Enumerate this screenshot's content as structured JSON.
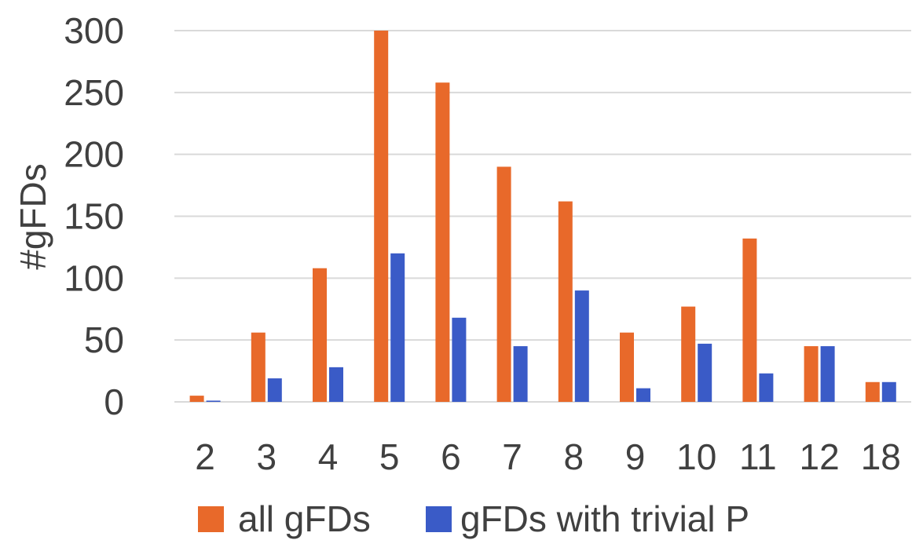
{
  "chart_data": {
    "type": "bar",
    "title": "",
    "xlabel": "",
    "ylabel": "#gFDs",
    "categories": [
      "2",
      "3",
      "4",
      "5",
      "6",
      "7",
      "8",
      "9",
      "10",
      "11",
      "12",
      "18"
    ],
    "series": [
      {
        "name": "all gFDs",
        "color": "#E8692A",
        "values": [
          5,
          56,
          108,
          300,
          258,
          190,
          162,
          56,
          77,
          132,
          45,
          16
        ]
      },
      {
        "name": "gFDs with trivial P",
        "color": "#3A5BC7",
        "values": [
          1,
          19,
          28,
          120,
          68,
          45,
          90,
          11,
          47,
          23,
          45,
          16
        ]
      }
    ],
    "ylim": [
      0,
      300
    ],
    "yticks": [
      0,
      50,
      100,
      150,
      200,
      250,
      300
    ],
    "grid": true,
    "legend_position": "bottom"
  }
}
